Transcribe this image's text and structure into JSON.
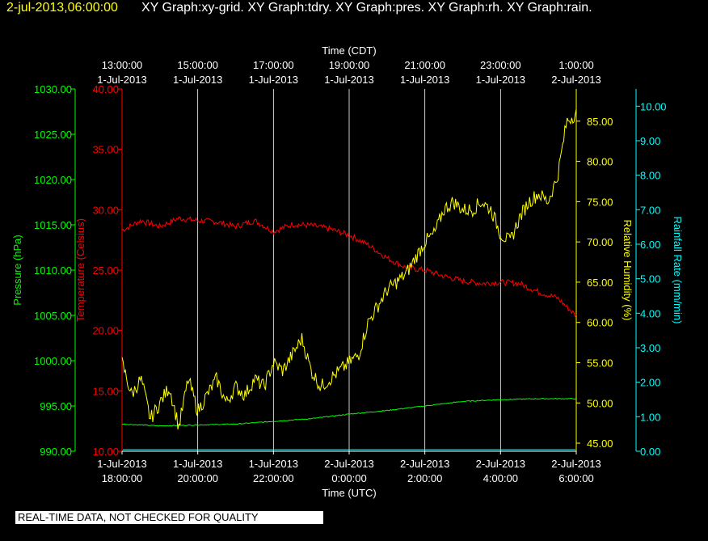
{
  "header": {
    "date": "2-jul-2013,06:00:00",
    "graphs": "XY Graph:xy-grid.  XY Graph:tdry.  XY Graph:pres.  XY Graph:rh.  XY Graph:rain."
  },
  "footer": {
    "quality_note": "REAL-TIME DATA, NOT CHECKED FOR QUALITY"
  },
  "colors": {
    "background": "#000000",
    "grid": "#ffffff",
    "pressure": "#00ff00",
    "temperature": "#ff0000",
    "humidity": "#ffff00",
    "rain": "#00ffff",
    "top_axis": "#ffffff",
    "bottom_axis": "#ffffff"
  },
  "chart_data": {
    "type": "line",
    "grid": true,
    "x_axis_bottom": {
      "label": "Time (UTC)",
      "range": [
        "2013-07-01T18:00",
        "2013-07-02T06:00"
      ],
      "ticks": [
        {
          "date": "1-Jul-2013",
          "time": "18:00:00"
        },
        {
          "date": "1-Jul-2013",
          "time": "20:00:00"
        },
        {
          "date": "1-Jul-2013",
          "time": "22:00:00"
        },
        {
          "date": "2-Jul-2013",
          "time": "0:00:00"
        },
        {
          "date": "2-Jul-2013",
          "time": "2:00:00"
        },
        {
          "date": "2-Jul-2013",
          "time": "4:00:00"
        },
        {
          "date": "2-Jul-2013",
          "time": "6:00:00"
        }
      ]
    },
    "x_axis_top": {
      "label": "Time (CDT)",
      "ticks": [
        {
          "date": "1-Jul-2013",
          "time": "13:00:00"
        },
        {
          "date": "1-Jul-2013",
          "time": "15:00:00"
        },
        {
          "date": "1-Jul-2013",
          "time": "17:00:00"
        },
        {
          "date": "1-Jul-2013",
          "time": "19:00:00"
        },
        {
          "date": "1-Jul-2013",
          "time": "21:00:00"
        },
        {
          "date": "1-Jul-2013",
          "time": "23:00:00"
        },
        {
          "date": "2-Jul-2013",
          "time": "1:00:00"
        }
      ]
    },
    "y_axes": [
      {
        "id": "pressure",
        "label": "Pressure (hPa)",
        "min": 990,
        "max": 1030,
        "ticks": [
          "990.00",
          "995.00",
          "1000.00",
          "1005.00",
          "1010.00",
          "1015.00",
          "1020.00",
          "1025.00",
          "1030.00"
        ]
      },
      {
        "id": "temperature",
        "label": "Temperature (Celsius)",
        "min": 10,
        "max": 40,
        "ticks": [
          "10.00",
          "15.00",
          "20.00",
          "25.00",
          "30.00",
          "35.00",
          "40.00"
        ]
      },
      {
        "id": "humidity",
        "label": "Relative Humidity (%)",
        "min": 44,
        "max": 89,
        "ticks": [
          "45.00",
          "50.00",
          "55.00",
          "60.00",
          "65.00",
          "70.00",
          "75.00",
          "80.00",
          "85.00"
        ]
      },
      {
        "id": "rain",
        "label": "Rainfall Rate (mm/min)",
        "min": 0,
        "max": 10.5,
        "ticks": [
          "0.00",
          "1.00",
          "2.00",
          "3.00",
          "4.00",
          "5.00",
          "6.00",
          "7.00",
          "8.00",
          "9.00",
          "10.00"
        ]
      }
    ],
    "series": [
      {
        "id": "temperature",
        "axis": "temperature",
        "x": [
          "2013-07-01T18:00",
          "2013-07-01T18:30",
          "2013-07-01T19:00",
          "2013-07-01T19:30",
          "2013-07-01T20:00",
          "2013-07-01T20:30",
          "2013-07-01T21:00",
          "2013-07-01T21:30",
          "2013-07-01T22:00",
          "2013-07-01T22:30",
          "2013-07-01T23:00",
          "2013-07-01T23:30",
          "2013-07-02T00:00",
          "2013-07-02T00:30",
          "2013-07-02T01:00",
          "2013-07-02T01:30",
          "2013-07-02T02:00",
          "2013-07-02T02:30",
          "2013-07-02T03:00",
          "2013-07-02T03:30",
          "2013-07-02T04:00",
          "2013-07-02T04:30",
          "2013-07-02T05:00",
          "2013-07-02T05:30",
          "2013-07-02T06:00"
        ],
        "y": [
          28.3,
          29.1,
          28.6,
          29.3,
          29.1,
          29.0,
          28.6,
          29.1,
          28.2,
          28.8,
          28.7,
          28.4,
          27.9,
          27.1,
          26.0,
          25.2,
          25.0,
          24.5,
          24.1,
          23.9,
          24.0,
          23.9,
          23.2,
          22.7,
          21.2
        ]
      },
      {
        "id": "pressure",
        "axis": "pressure",
        "x": [
          "2013-07-01T18:00",
          "2013-07-01T19:00",
          "2013-07-01T20:00",
          "2013-07-01T21:00",
          "2013-07-01T22:00",
          "2013-07-01T23:00",
          "2013-07-02T00:00",
          "2013-07-02T01:00",
          "2013-07-02T02:00",
          "2013-07-02T03:00",
          "2013-07-02T04:00",
          "2013-07-02T05:00",
          "2013-07-02T06:00"
        ],
        "y": [
          993.0,
          992.8,
          992.9,
          993.0,
          993.3,
          993.6,
          994.1,
          994.5,
          995.0,
          995.5,
          995.7,
          995.8,
          995.8
        ]
      },
      {
        "id": "humidity",
        "axis": "humidity",
        "x": [
          "2013-07-01T18:00",
          "2013-07-01T18:15",
          "2013-07-01T18:30",
          "2013-07-01T18:45",
          "2013-07-01T19:00",
          "2013-07-01T19:15",
          "2013-07-01T19:30",
          "2013-07-01T19:45",
          "2013-07-01T20:00",
          "2013-07-01T20:15",
          "2013-07-01T20:30",
          "2013-07-01T20:45",
          "2013-07-01T21:00",
          "2013-07-01T21:15",
          "2013-07-01T21:30",
          "2013-07-01T21:45",
          "2013-07-01T22:00",
          "2013-07-01T22:15",
          "2013-07-01T22:30",
          "2013-07-01T22:45",
          "2013-07-01T23:00",
          "2013-07-01T23:15",
          "2013-07-01T23:30",
          "2013-07-01T23:45",
          "2013-07-02T00:00",
          "2013-07-02T00:15",
          "2013-07-02T00:30",
          "2013-07-02T00:45",
          "2013-07-02T01:00",
          "2013-07-02T01:15",
          "2013-07-02T01:30",
          "2013-07-02T01:45",
          "2013-07-02T02:00",
          "2013-07-02T02:15",
          "2013-07-02T02:30",
          "2013-07-02T02:45",
          "2013-07-02T03:00",
          "2013-07-02T03:15",
          "2013-07-02T03:30",
          "2013-07-02T03:45",
          "2013-07-02T04:00",
          "2013-07-02T04:15",
          "2013-07-02T04:30",
          "2013-07-02T04:45",
          "2013-07-02T05:00",
          "2013-07-02T05:15",
          "2013-07-02T05:30",
          "2013-07-02T05:45",
          "2013-07-02T06:00"
        ],
        "y": [
          55,
          51,
          53,
          48,
          50,
          52,
          47,
          53,
          49,
          51,
          53,
          50,
          52,
          51,
          53,
          52,
          55,
          54,
          56,
          58,
          54,
          52,
          53,
          54,
          55,
          56,
          60,
          62,
          64,
          65,
          66,
          68,
          70,
          71,
          74,
          75,
          74,
          74,
          75,
          74,
          71,
          70,
          73,
          75,
          76,
          75,
          78,
          85,
          86
        ]
      },
      {
        "id": "rain",
        "axis": "rain",
        "x": [
          "2013-07-01T18:00",
          "2013-07-02T06:00"
        ],
        "y": [
          0.0,
          0.0
        ]
      }
    ]
  }
}
